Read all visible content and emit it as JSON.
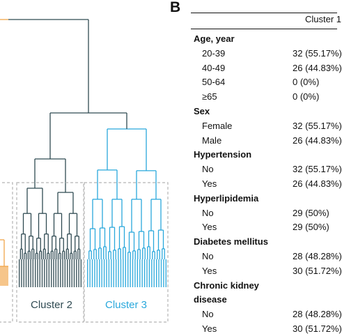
{
  "panel_label": "B",
  "cluster_labels": {
    "cluster2": "Cluster 2",
    "cluster3": "Cluster 3"
  },
  "colors": {
    "cluster1": "#f0a64a",
    "cluster2": "#2f4a52",
    "cluster3": "#29a8dc",
    "box": "#b5b5b5"
  },
  "table": {
    "header": "Cluster 1",
    "rows": [
      {
        "type": "section",
        "label": "Age, year",
        "value": ""
      },
      {
        "type": "item",
        "label": "20-39",
        "value": "32 (55.17%)"
      },
      {
        "type": "item",
        "label": "40-49",
        "value": "26 (44.83%)"
      },
      {
        "type": "item",
        "label": "50-64",
        "value": "0 (0%)"
      },
      {
        "type": "item",
        "label": "≥65",
        "value": "0 (0%)"
      },
      {
        "type": "section",
        "label": "Sex",
        "value": ""
      },
      {
        "type": "item",
        "label": "Female",
        "value": "32 (55.17%)"
      },
      {
        "type": "item",
        "label": "Male",
        "value": "26 (44.83%)"
      },
      {
        "type": "section",
        "label": "Hypertension",
        "value": ""
      },
      {
        "type": "item",
        "label": "No",
        "value": "32 (55.17%)"
      },
      {
        "type": "item",
        "label": "Yes",
        "value": "26 (44.83%)"
      },
      {
        "type": "section",
        "label": "Hyperlipidemia",
        "value": ""
      },
      {
        "type": "item",
        "label": "No",
        "value": "29 (50%)"
      },
      {
        "type": "item",
        "label": "Yes",
        "value": "29 (50%)"
      },
      {
        "type": "section",
        "label": "Diabetes mellitus",
        "value": ""
      },
      {
        "type": "item",
        "label": "No",
        "value": "28 (48.28%)"
      },
      {
        "type": "item",
        "label": "Yes",
        "value": "30 (51.72%)"
      },
      {
        "type": "section",
        "label": "Chronic kidney",
        "value": ""
      },
      {
        "type": "section",
        "label": "disease",
        "value": ""
      },
      {
        "type": "item",
        "label": "No",
        "value": "28 (48.28%)"
      },
      {
        "type": "item",
        "label": "Yes",
        "value": "30 (51.72%)"
      }
    ]
  }
}
